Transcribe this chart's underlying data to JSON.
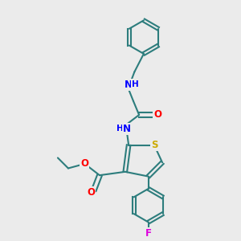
{
  "bg_color": "#ebebeb",
  "bond_color": "#2d7d7d",
  "bond_width": 1.5,
  "atom_colors": {
    "N": "#0000ff",
    "O": "#ff0000",
    "S": "#ccaa00",
    "F": "#dd00dd",
    "C": "#000000"
  },
  "font_size_atom": 8.5
}
